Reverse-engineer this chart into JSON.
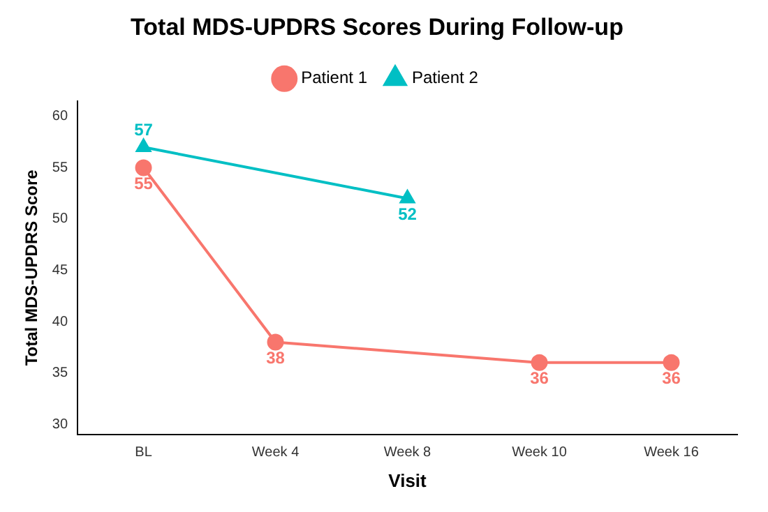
{
  "chart_data": {
    "type": "line",
    "title": "Total MDS-UPDRS Scores During Follow-up",
    "xlabel": "Visit",
    "ylabel": "Total MDS-UPDRS Score",
    "categories": [
      "BL",
      "Week 4",
      "Week 8",
      "Week 10",
      "Week 16"
    ],
    "series": [
      {
        "name": "Patient 1",
        "color": "#f8766d",
        "marker": "circle",
        "values": [
          55,
          38,
          null,
          36,
          36
        ]
      },
      {
        "name": "Patient 2",
        "color": "#00bfc4",
        "marker": "triangle",
        "values": [
          57,
          null,
          52,
          null,
          null
        ]
      }
    ],
    "ylim": [
      29,
      61.5
    ],
    "yticks": [
      30,
      35,
      40,
      45,
      50,
      55,
      60
    ],
    "grid": false,
    "legend": "top",
    "data_labels": true
  }
}
